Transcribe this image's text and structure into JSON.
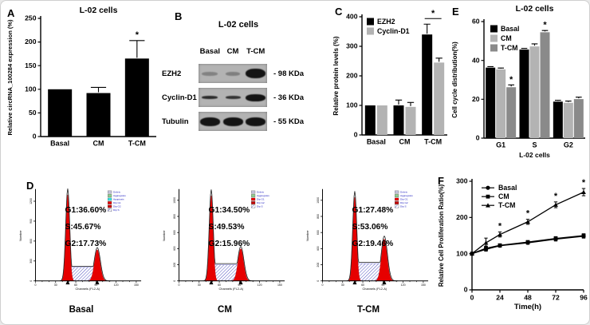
{
  "figure": {
    "panels": {
      "A": {
        "label": "A"
      },
      "B": {
        "label": "B",
        "title": "L-02 cells",
        "columns": [
          "Basal",
          "CM",
          "T-CM"
        ],
        "rows": [
          {
            "name": "EZH2",
            "marker": "- 98 KDa",
            "band_opacity": [
              0.3,
              0.32,
              1
            ],
            "band_height": [
              5,
              5,
              12
            ],
            "band_width": [
              20,
              18,
              25
            ]
          },
          {
            "name": "Cyclin-D1",
            "marker": "- 36 KDa",
            "band_opacity": [
              0.85,
              0.8,
              1
            ],
            "band_height": [
              4,
              4,
              9
            ],
            "band_width": [
              20,
              19,
              25
            ]
          },
          {
            "name": "Tubulin",
            "marker": "- 55 KDa",
            "band_opacity": [
              1,
              1,
              1
            ],
            "band_height": [
              11,
              11,
              11
            ],
            "band_width": [
              25,
              25,
              25
            ]
          }
        ]
      },
      "C": {
        "label": "C"
      },
      "D": {
        "label": "D"
      },
      "E": {
        "label": "E"
      },
      "F": {
        "label": "F"
      }
    }
  },
  "chart_data": [
    {
      "id": "panelA",
      "type": "bar",
      "title": "L-02 cells",
      "ylabel": "Relative circRNA_100284 expression (%)",
      "categories": [
        "Basal",
        "CM",
        "T-CM"
      ],
      "values": [
        100,
        92,
        165
      ],
      "errors": [
        0,
        12,
        38
      ],
      "sig": [
        "",
        "",
        "*"
      ],
      "ylim": [
        0,
        250
      ],
      "ytick_step": 50,
      "bar_color": "#000000",
      "grid": false
    },
    {
      "id": "panelC",
      "type": "bar",
      "ylabel": "Relative protein levels (%)",
      "categories": [
        "Basal",
        "CM",
        "T-CM"
      ],
      "series": [
        {
          "name": "EZH2",
          "color": "#000000",
          "values": [
            100,
            100,
            340
          ],
          "errors": [
            0,
            18,
            35
          ]
        },
        {
          "name": "Cyclin-D1",
          "color": "#b3b3b3",
          "values": [
            100,
            95,
            245
          ],
          "errors": [
            0,
            15,
            15
          ]
        }
      ],
      "sig_groups": [
        {
          "category": "T-CM",
          "label": "*"
        }
      ],
      "ylim": [
        0,
        400
      ],
      "ytick_step": 100,
      "legend_position": "top-left",
      "grid": false
    },
    {
      "id": "panelE",
      "type": "bar",
      "title": "L-02 cells",
      "xlabel": "L-02 cells",
      "ylabel": "Cell cycle distribution(%)",
      "categories": [
        "G1",
        "S",
        "G2"
      ],
      "series": [
        {
          "name": "Basal",
          "color": "#000000",
          "values": [
            36.3,
            45.6,
            18.8
          ],
          "errors": [
            0.5,
            0.6,
            0.7
          ]
        },
        {
          "name": "CM",
          "color": "#b3b3b3",
          "values": [
            35.4,
            47.2,
            18.2
          ],
          "errors": [
            0.7,
            1.3,
            0.9
          ]
        },
        {
          "name": "T-CM",
          "color": "#8a8a8a",
          "values": [
            26.2,
            54.5,
            20.1
          ],
          "errors": [
            1.2,
            0.9,
            1.0
          ]
        }
      ],
      "sig_points": [
        {
          "category": "G1",
          "series": "T-CM",
          "label": "*"
        },
        {
          "category": "S",
          "series": "T-CM",
          "label": "*"
        }
      ],
      "ylim": [
        0,
        60
      ],
      "ytick_step": 20,
      "legend_position": "top-left",
      "grid": false
    },
    {
      "id": "panelF",
      "type": "line",
      "ylabel": "Relative Cell Proliferation Ratio(%)",
      "xlabel": "Time(h)",
      "x": [
        0,
        12,
        24,
        48,
        72,
        96
      ],
      "xticks": [
        0,
        24,
        48,
        72,
        96
      ],
      "series": [
        {
          "name": "Basal",
          "marker": "circle",
          "color": "#000000",
          "values": [
            100,
            112,
            122,
            130,
            140,
            148
          ],
          "errors": [
            0,
            5,
            4,
            4,
            5,
            5
          ]
        },
        {
          "name": "CM",
          "marker": "square",
          "color": "#000000",
          "values": [
            100,
            115,
            123,
            132,
            142,
            150
          ],
          "errors": [
            0,
            6,
            4,
            4,
            5,
            5
          ]
        },
        {
          "name": "T-CM",
          "marker": "triangle",
          "color": "#000000",
          "values": [
            100,
            130,
            153,
            188,
            235,
            270
          ],
          "errors": [
            0,
            13,
            7,
            7,
            8,
            10
          ]
        }
      ],
      "sig_series": "T-CM",
      "sig_x": [
        24,
        48,
        72,
        96
      ],
      "sig_label": "*",
      "ylim": [
        0,
        300
      ],
      "ytick_step": 100,
      "legend_position": "top-left",
      "grid": false
    },
    {
      "id": "panelD",
      "type": "flow-histograms",
      "xlabel": "Channels (FL2-A)",
      "ylabel": "Number",
      "xticks": [
        0,
        30,
        60,
        90,
        120,
        150
      ],
      "g1_channel": 48,
      "g2_channel": 92,
      "histograms": [
        {
          "name": "Basal",
          "stats": [
            {
              "label": "G1",
              "value": "36.60%"
            },
            {
              "label": "S",
              "value": "45.67%"
            },
            {
              "label": "G2",
              "value": "17.73%"
            }
          ],
          "yticks": [
            0,
            300,
            600,
            900,
            1200
          ],
          "ymax": 1360,
          "g1_peak": 1300,
          "g2_peak": 470,
          "s_level": 205,
          "legend": [
            "Debris",
            "Aggregates",
            "Apoptosis",
            "Dip G1",
            "Dip G2",
            "Dip S"
          ]
        },
        {
          "name": "CM",
          "stats": [
            {
              "label": "G1",
              "value": "34.50%"
            },
            {
              "label": "S",
              "value": "49.53%"
            },
            {
              "label": "G2",
              "value": "15.96%"
            }
          ],
          "yticks": [
            0,
            200,
            400,
            600,
            800,
            1000
          ],
          "ymax": 1120,
          "g1_peak": 1060,
          "g2_peak": 400,
          "s_level": 200,
          "legend": [
            "Debris",
            "Aggregates",
            "Dip G1",
            "Dip G2",
            "Dip S"
          ]
        },
        {
          "name": "T-CM",
          "stats": [
            {
              "label": "G1",
              "value": "27.48%"
            },
            {
              "label": "S",
              "value": "53.06%"
            },
            {
              "label": "G2",
              "value": "19.46%"
            }
          ],
          "yticks": [
            0,
            200,
            400,
            600,
            800,
            1000
          ],
          "ymax": 1120,
          "g1_peak": 1040,
          "g2_peak": 520,
          "s_level": 215,
          "legend": [
            "Debris",
            "Aggregates",
            "Dip G1",
            "Dip G2",
            "Dip S"
          ]
        }
      ],
      "legend_colors": {
        "Debris": "#c2c2da",
        "Aggregates": "#8fce8f",
        "Apoptosis": "#35dede",
        "Dip G1": "#e60000",
        "Dip G2": "#c40000",
        "Dip S": "#ffffff"
      },
      "colors": {
        "peak_fill": "#e60000",
        "outline": "#1a1a1a",
        "hatch_line": "#5050c0",
        "legend_text": "#2020c0"
      }
    }
  ]
}
